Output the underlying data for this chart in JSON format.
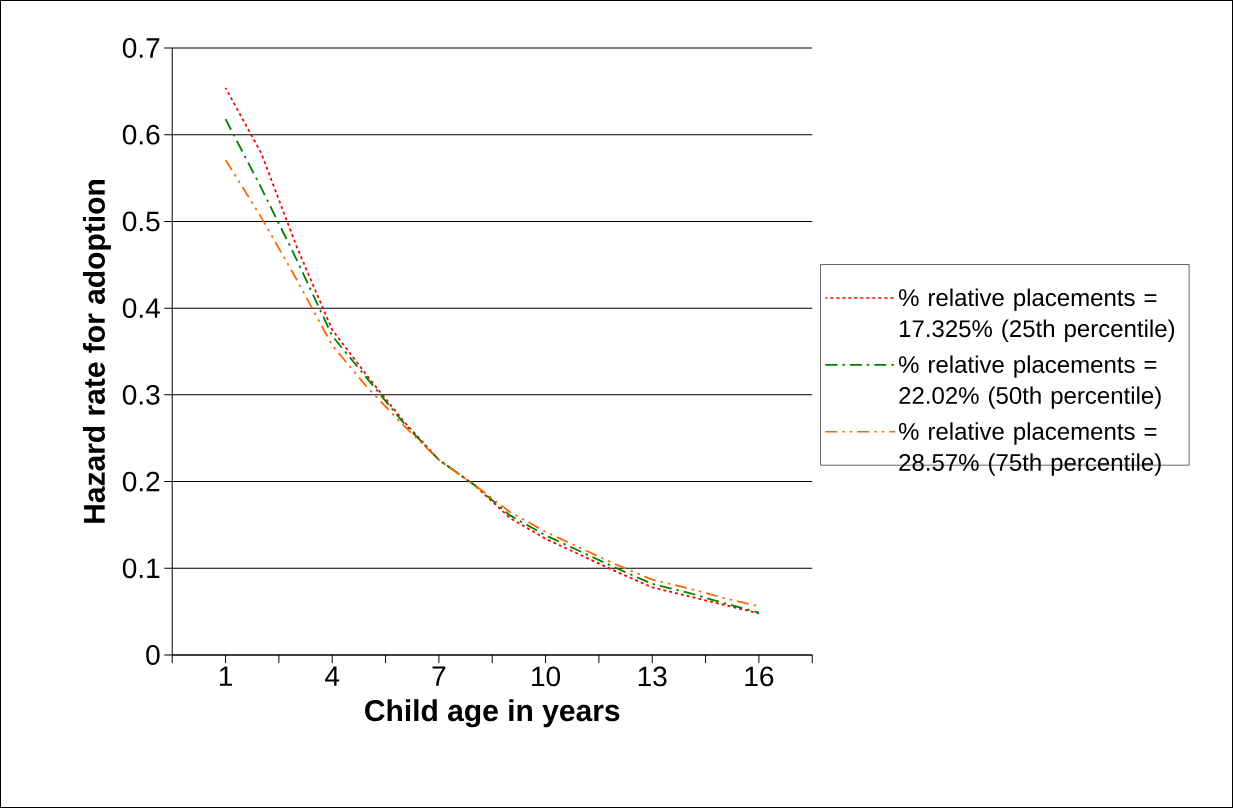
{
  "chart_data": {
    "type": "line",
    "xlabel": "Child age in years",
    "ylabel": "Hazard rate for adoption",
    "x": [
      1,
      2,
      3,
      4,
      5,
      6,
      7,
      8,
      9,
      10,
      11,
      12,
      13,
      14,
      15,
      16
    ],
    "xlim": [
      -0.5,
      17.5
    ],
    "xticks": [
      {
        "value": -0.5,
        "label": null
      },
      {
        "value": 1,
        "label": "1"
      },
      {
        "value": 2.5,
        "label": null
      },
      {
        "value": 4,
        "label": "4"
      },
      {
        "value": 5.5,
        "label": null
      },
      {
        "value": 7,
        "label": "7"
      },
      {
        "value": 8.5,
        "label": null
      },
      {
        "value": 10,
        "label": "10"
      },
      {
        "value": 11.5,
        "label": null
      },
      {
        "value": 13,
        "label": "13"
      },
      {
        "value": 14.5,
        "label": null
      },
      {
        "value": 16,
        "label": "16"
      },
      {
        "value": 17.5,
        "label": null
      }
    ],
    "ylim": [
      0,
      0.7
    ],
    "yticks": [
      0,
      0.1,
      0.2,
      0.3,
      0.4,
      0.5,
      0.6,
      0.7
    ],
    "grid": "y",
    "legend": "right",
    "marker": "none",
    "series": [
      {
        "name": "% relative placements = 17.325% (25th percentile)",
        "color": "#ff0000",
        "line_style": "dotted",
        "values": [
          0.654,
          0.579,
          0.471,
          0.375,
          0.321,
          0.27,
          0.225,
          0.196,
          0.158,
          0.134,
          0.115,
          0.096,
          0.078,
          0.068,
          0.058,
          0.048
        ]
      },
      {
        "name": "% relative placements = 22.02% (50th percentile)",
        "color": "#008000",
        "line_style": "dashdot",
        "values": [
          0.618,
          0.539,
          0.456,
          0.368,
          0.318,
          0.268,
          0.225,
          0.196,
          0.161,
          0.138,
          0.119,
          0.1,
          0.082,
          0.072,
          0.06,
          0.049
        ]
      },
      {
        "name": "% relative placements = 28.57% (75th percentile)",
        "color": "#ff6600",
        "line_style": "dashdotdot",
        "values": [
          0.571,
          0.505,
          0.433,
          0.357,
          0.308,
          0.265,
          0.225,
          0.196,
          0.165,
          0.142,
          0.123,
          0.104,
          0.087,
          0.077,
          0.066,
          0.056
        ]
      }
    ]
  }
}
